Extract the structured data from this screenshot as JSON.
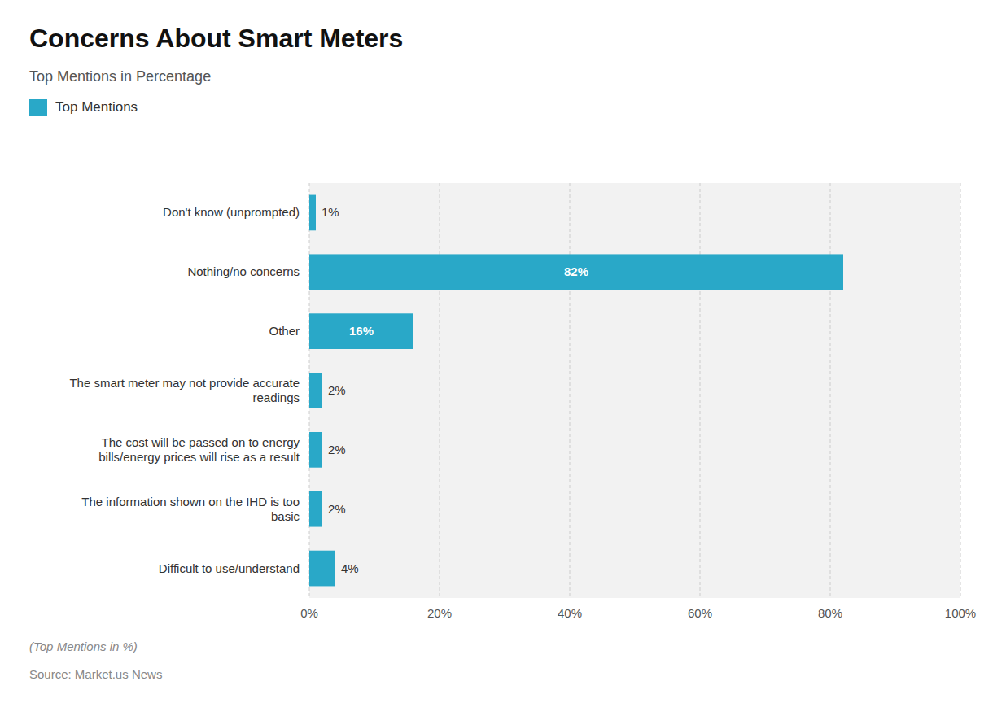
{
  "chart_data": {
    "type": "bar",
    "orientation": "horizontal",
    "title": "Concerns About Smart Meters",
    "subtitle": "Top Mentions in Percentage",
    "footnote": "(Top Mentions in %)",
    "source": "Source: Market.us News",
    "categories": [
      "Don't know (unprompted)",
      "Nothing/no concerns",
      "Other",
      "The smart meter may not provide accurate\nreadings",
      "The cost will be passed on to energy\nbills/energy prices will rise as a result",
      "The information shown on the IHD is too\nbasic",
      "Difficult to use/understand"
    ],
    "series": [
      {
        "name": "Top Mentions",
        "color": "#29a8c8",
        "values": [
          1,
          82,
          16,
          2,
          2,
          2,
          4
        ],
        "value_labels": [
          "1%",
          "82%",
          "16%",
          "2%",
          "2%",
          "2%",
          "4%"
        ]
      }
    ],
    "xlim": [
      0,
      100
    ],
    "xticks": [
      {
        "value": 0,
        "label": "0%"
      },
      {
        "value": 20,
        "label": "20%"
      },
      {
        "value": 40,
        "label": "40%"
      },
      {
        "value": 60,
        "label": "60%"
      },
      {
        "value": 80,
        "label": "80%"
      },
      {
        "value": 100,
        "label": "100%"
      }
    ],
    "grid": true,
    "legend": "top-left",
    "data_labels": true
  }
}
